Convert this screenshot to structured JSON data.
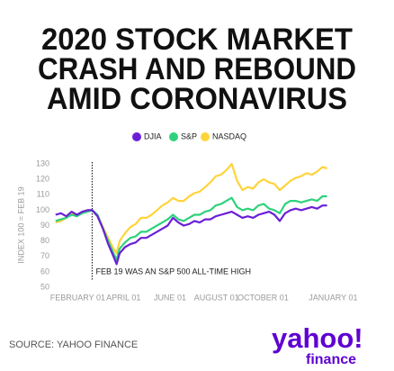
{
  "chart_data": {
    "type": "line",
    "title_lines": [
      "2020 STOCK MARKET",
      "CRASH AND REBOUND",
      "AMID CORONAVIRUS"
    ],
    "y_label": "INDEX 100 = FEB 19",
    "annotation": {
      "text": "FEB 19 WAS AN S&P 500 ALL-TIME HIGH",
      "x": 50
    },
    "source": "SOURCE: YAHOO FINANCE",
    "logo": {
      "top": "yahoo!",
      "bottom": "finance"
    },
    "x": [
      2,
      9,
      16,
      23,
      30,
      37,
      44,
      50,
      57,
      64,
      71,
      78,
      82,
      86,
      93,
      100,
      107,
      114,
      121,
      128,
      135,
      142,
      149,
      156,
      163,
      170,
      177,
      184,
      191,
      198,
      205,
      212,
      219,
      226,
      233,
      240,
      247,
      254,
      261,
      268,
      275,
      282,
      289,
      296,
      303,
      310,
      317,
      324,
      331,
      338,
      345,
      352,
      358
    ],
    "xlim": [
      -65,
      375
    ],
    "xticks": [
      {
        "value": 31,
        "label": "FEBRUARY 01"
      },
      {
        "value": 91,
        "label": "APRIL 01"
      },
      {
        "value": 152,
        "label": "JUNE 01"
      },
      {
        "value": 213,
        "label": "AUGUST 01"
      },
      {
        "value": 274,
        "label": "OCTOBER 01"
      },
      {
        "value": 366,
        "label": "JANUARY 01"
      }
    ],
    "ylim": [
      50,
      130
    ],
    "yticks": [
      50,
      60,
      70,
      80,
      90,
      100,
      110,
      120,
      130
    ],
    "series": [
      {
        "name": "DJIA",
        "color": "#6a1fd6",
        "values": [
          97,
          98,
          96,
          99,
          97,
          99,
          100,
          100,
          96,
          88,
          78,
          70,
          65,
          72,
          76,
          78,
          79,
          82,
          82,
          84,
          86,
          88,
          90,
          95,
          92,
          90,
          91,
          93,
          92,
          94,
          94,
          96,
          97,
          98,
          99,
          97,
          95,
          96,
          95,
          97,
          98,
          99,
          97,
          93,
          98,
          100,
          101,
          100,
          101,
          102,
          101,
          103,
          103
        ]
      },
      {
        "name": "S&P",
        "color": "#2ed27c",
        "values": [
          93,
          94,
          95,
          97,
          96,
          98,
          99,
          100,
          97,
          88,
          80,
          72,
          68,
          75,
          79,
          82,
          83,
          86,
          86,
          88,
          90,
          92,
          94,
          97,
          94,
          93,
          95,
          97,
          97,
          99,
          100,
          103,
          104,
          106,
          108,
          102,
          100,
          101,
          100,
          103,
          104,
          101,
          100,
          98,
          104,
          106,
          106,
          105,
          106,
          107,
          106,
          109,
          109
        ]
      },
      {
        "name": "NASDAQ",
        "color": "#ffd43b",
        "values": [
          92,
          93,
          95,
          98,
          97,
          99,
          100,
          100,
          97,
          89,
          82,
          75,
          72,
          80,
          85,
          89,
          91,
          95,
          95,
          97,
          100,
          103,
          105,
          108,
          106,
          106,
          109,
          111,
          112,
          115,
          118,
          122,
          123,
          126,
          130,
          119,
          113,
          115,
          114,
          118,
          120,
          118,
          117,
          113,
          116,
          119,
          121,
          122,
          124,
          123,
          125,
          128,
          127
        ]
      }
    ]
  }
}
